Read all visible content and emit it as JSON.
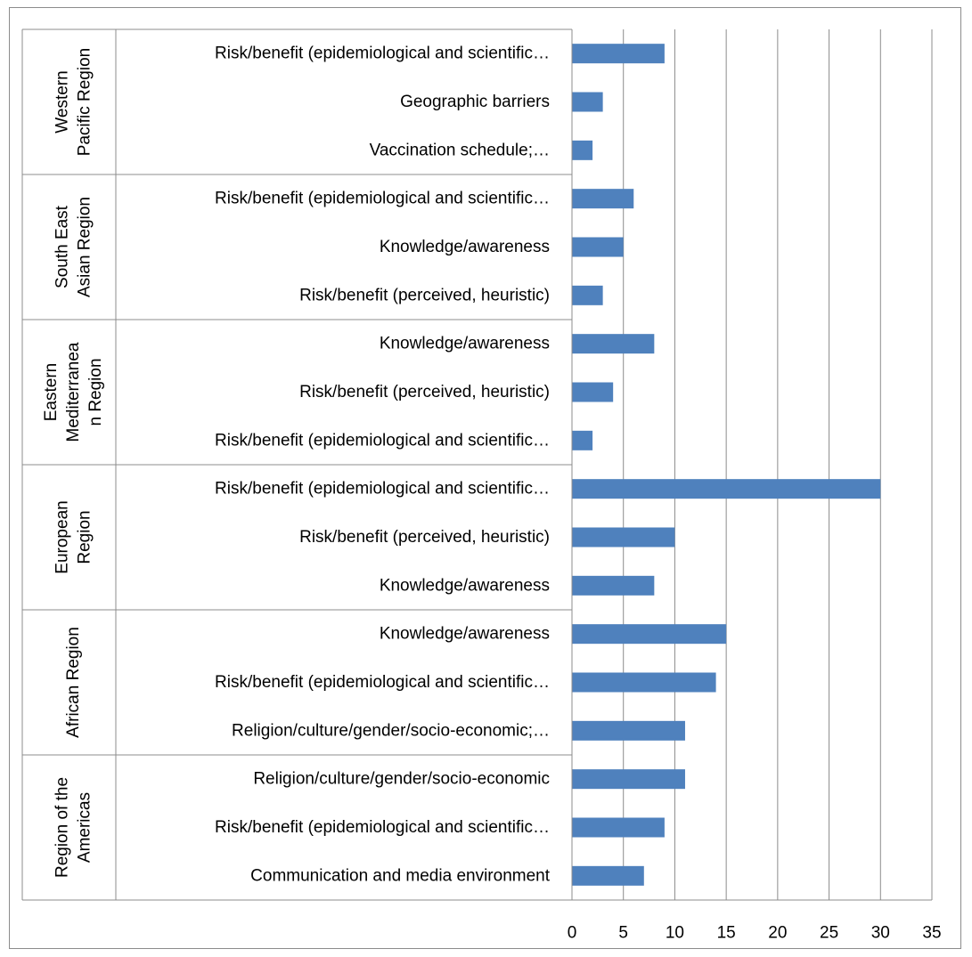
{
  "chart_data": {
    "type": "bar",
    "orientation": "horizontal",
    "title": "",
    "xlabel": "",
    "ylabel": "",
    "xlim": [
      0,
      35
    ],
    "x_ticks": [
      0,
      5,
      10,
      15,
      20,
      25,
      30,
      35
    ],
    "vertical_gridlines": true,
    "legend": "none",
    "bar_color": "#4f81bd",
    "groups": [
      {
        "region_lines": [
          "Western",
          "Pacific Region"
        ],
        "bars": [
          {
            "label": "Risk/benefit (epidemiological and scientific…",
            "value": 9
          },
          {
            "label": "Geographic barriers",
            "value": 3
          },
          {
            "label": "Vaccination schedule;…",
            "value": 2
          }
        ]
      },
      {
        "region_lines": [
          "South East",
          "Asian Region"
        ],
        "bars": [
          {
            "label": "Risk/benefit (epidemiological and scientific…",
            "value": 6
          },
          {
            "label": "Knowledge/awareness",
            "value": 5
          },
          {
            "label": "Risk/benefit (perceived, heuristic)",
            "value": 3
          }
        ]
      },
      {
        "region_lines": [
          "Eastern",
          "Mediterranea",
          "n Region"
        ],
        "bars": [
          {
            "label": "Knowledge/awareness",
            "value": 8
          },
          {
            "label": "Risk/benefit (perceived, heuristic)",
            "value": 4
          },
          {
            "label": "Risk/benefit (epidemiological and scientific…",
            "value": 2
          }
        ]
      },
      {
        "region_lines": [
          "European",
          "Region"
        ],
        "bars": [
          {
            "label": "Risk/benefit (epidemiological and scientific…",
            "value": 30
          },
          {
            "label": "Risk/benefit (perceived, heuristic)",
            "value": 10
          },
          {
            "label": "Knowledge/awareness",
            "value": 8
          }
        ]
      },
      {
        "region_lines": [
          "African Region"
        ],
        "bars": [
          {
            "label": "Knowledge/awareness",
            "value": 15
          },
          {
            "label": "Risk/benefit (epidemiological and scientific…",
            "value": 14
          },
          {
            "label": "Religion/culture/gender/socio-economic;…",
            "value": 11
          }
        ]
      },
      {
        "region_lines": [
          "Region of the",
          "Americas"
        ],
        "bars": [
          {
            "label": "Religion/culture/gender/socio-economic",
            "value": 11
          },
          {
            "label": "Risk/benefit (epidemiological and scientific…",
            "value": 9
          },
          {
            "label": "Communication and media environment",
            "value": 7
          }
        ]
      }
    ]
  }
}
